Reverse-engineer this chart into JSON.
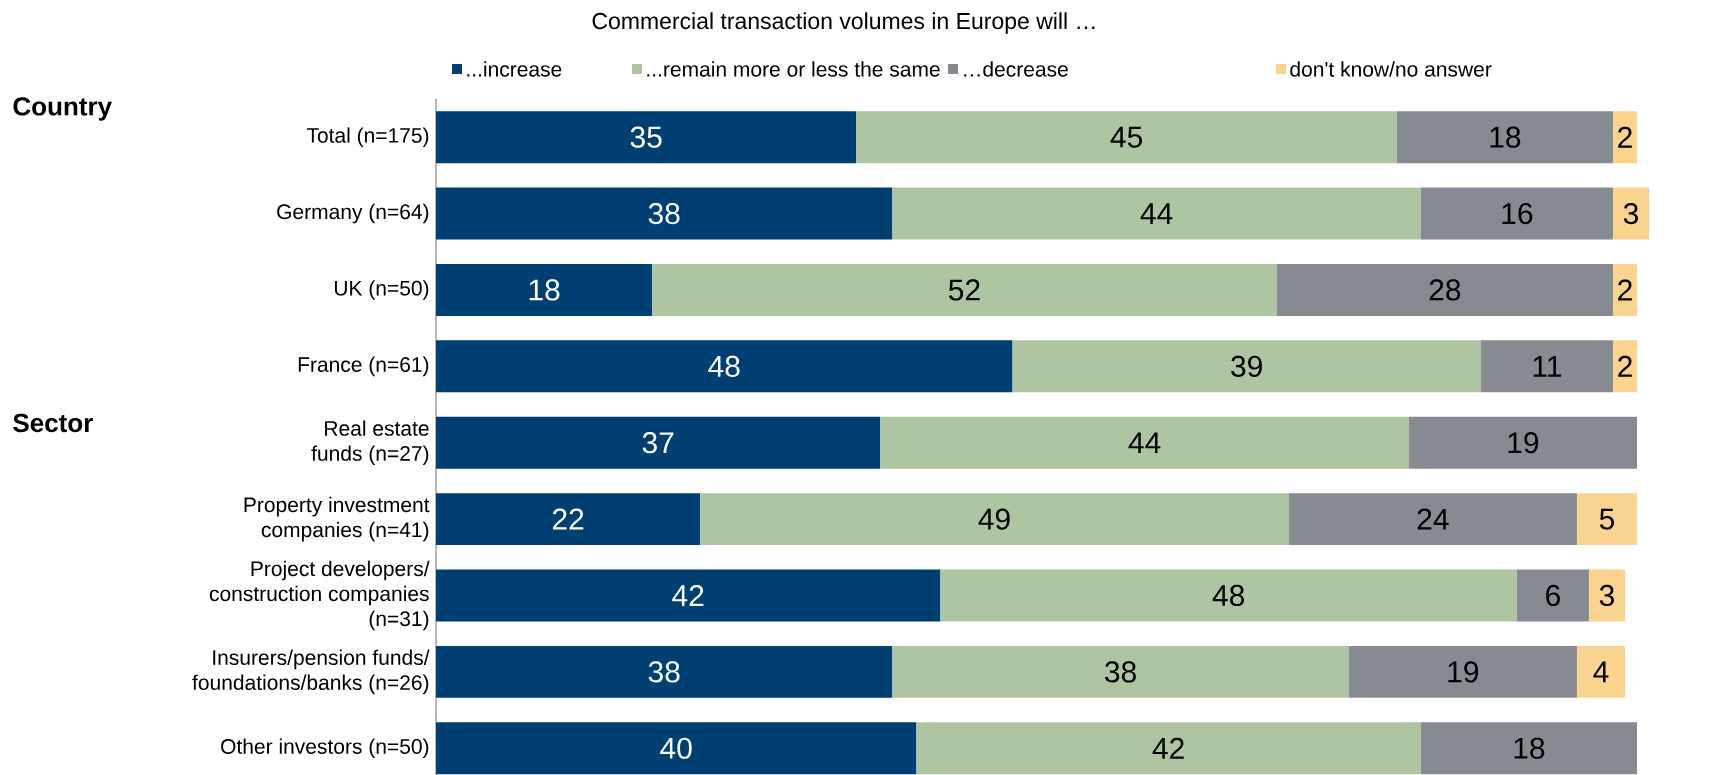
{
  "chart_data": {
    "type": "bar",
    "orientation": "horizontal",
    "stacked": true,
    "data_labels": true,
    "legend": "top",
    "title": "Commercial transaction volumes in Europe will …",
    "categories": [
      "Total (n=175)",
      "Germany (n=64)",
      "UK (n=50)",
      "France (n=61)",
      "Real estate funds (n=27)",
      "Property investment companies (n=41)",
      "Project developers/ construction companies (n=31)",
      "Insurers/pension funds/ foundations/banks (n=26)",
      "Other investors (n=50)"
    ],
    "series": [
      {
        "name": "...increase",
        "color": "#003f72",
        "values": [
          35,
          38,
          18,
          48,
          37,
          22,
          42,
          38,
          40
        ]
      },
      {
        "name": "...remain more or less the same",
        "color": "#adc6a1",
        "values": [
          45,
          44,
          52,
          39,
          44,
          49,
          48,
          38,
          42
        ]
      },
      {
        "name": "…decrease",
        "color": "#878a91",
        "values": [
          18,
          16,
          28,
          11,
          19,
          24,
          6,
          19,
          18
        ]
      },
      {
        "name": "don't know/no answer",
        "color": "#fad38f",
        "values": [
          2,
          3,
          2,
          2,
          null,
          5,
          3,
          4,
          null
        ]
      }
    ],
    "annotations": [
      "Country",
      "Sector"
    ]
  }
}
